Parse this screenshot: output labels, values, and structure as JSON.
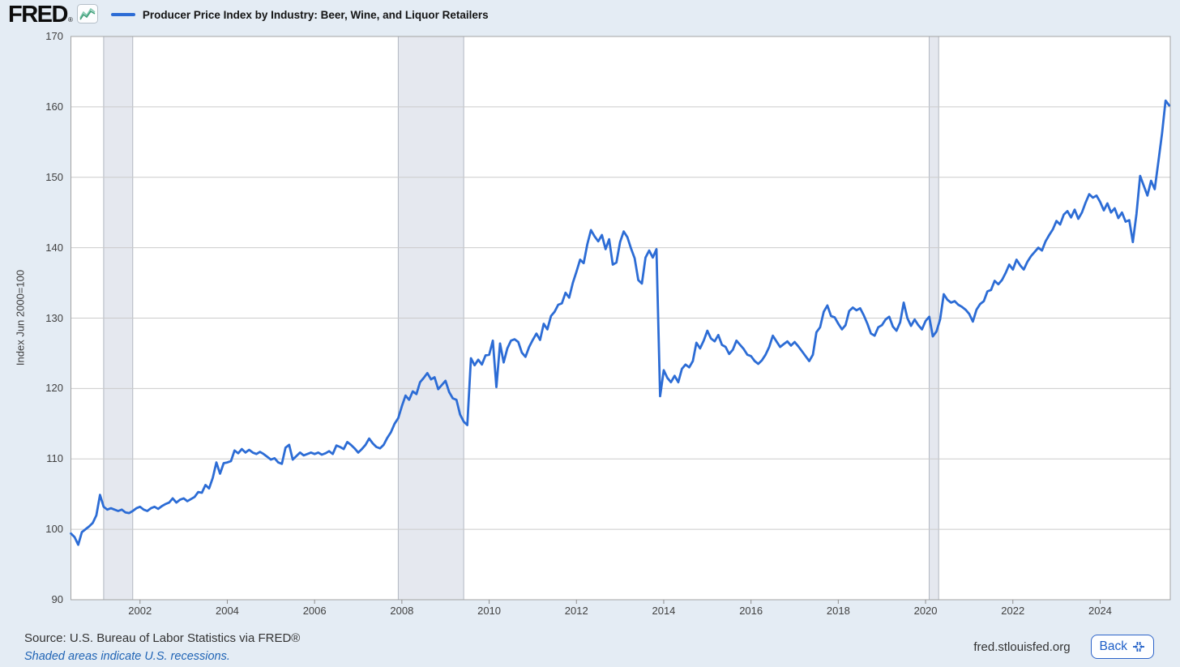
{
  "header": {
    "logo": "FRED",
    "registered": "®",
    "series_title": "Producer Price Index by Industry: Beer, Wine, and Liquor Retailers"
  },
  "y_axis": {
    "title": "Index Jun 2000=100",
    "ticks": [
      170,
      160,
      150,
      140,
      130,
      120,
      110,
      100,
      90
    ]
  },
  "x_axis": {
    "ticks": [
      2002,
      2004,
      2006,
      2008,
      2010,
      2012,
      2014,
      2016,
      2018,
      2020,
      2022,
      2024
    ]
  },
  "footer": {
    "source": "Source: U.S. Bureau of Labor Statistics via FRED®",
    "recession_note": "Shaded areas indicate U.S. recessions.",
    "site": "fred.stlouisfed.org",
    "back_label": "Back"
  },
  "colors": {
    "line": "#2c6cd5",
    "recession_fill": "#e5e8ef",
    "recession_edge": "#b2b7c1",
    "grid": "#cbcbcb",
    "plot_border": "#a3a3a3",
    "tick": "#8f8f8f",
    "page_bg": "#e4ecf4",
    "plot_bg": "#ffffff",
    "axis_text": "#404040",
    "link_blue": "#2064b5",
    "fred_icon_green": "#3e9e78",
    "fred_icon_teal": "#7fc7ae"
  },
  "chart_data": {
    "type": "line",
    "title": "Producer Price Index by Industry: Beer, Wine, and Liquor Retailers",
    "xlabel": "",
    "ylabel": "Index Jun 2000=100",
    "frequency": "monthly",
    "x_start_year": 2000,
    "x_start_month": 6,
    "x_end_label": "2025",
    "ylim": [
      90,
      170
    ],
    "grid": "horizontal",
    "legend_position": "top",
    "recessions": [
      [
        2001.167,
        2001.833
      ],
      [
        2007.917,
        2009.417
      ],
      [
        2020.083,
        2020.3
      ]
    ],
    "series": [
      {
        "name": "Producer Price Index by Industry: Beer, Wine, and Liquor Retailers",
        "color": "#2c6cd5",
        "values": [
          99.4,
          98.9,
          97.8,
          99.6,
          100.0,
          100.4,
          100.9,
          102.0,
          104.9,
          103.2,
          102.8,
          103.0,
          102.8,
          102.6,
          102.8,
          102.4,
          102.3,
          102.6,
          103.0,
          103.2,
          102.8,
          102.6,
          103.0,
          103.2,
          102.9,
          103.3,
          103.6,
          103.8,
          104.4,
          103.8,
          104.2,
          104.4,
          104.0,
          104.3,
          104.6,
          105.3,
          105.2,
          106.3,
          105.8,
          107.3,
          109.5,
          107.9,
          109.4,
          109.5,
          109.7,
          111.2,
          110.8,
          111.4,
          110.9,
          111.3,
          110.9,
          110.7,
          111.0,
          110.7,
          110.3,
          109.9,
          110.1,
          109.5,
          109.3,
          111.6,
          112.0,
          109.9,
          110.4,
          110.9,
          110.5,
          110.7,
          110.9,
          110.7,
          110.9,
          110.6,
          110.8,
          111.1,
          110.7,
          111.9,
          111.7,
          111.4,
          112.4,
          112.0,
          111.5,
          110.9,
          111.4,
          112.0,
          112.9,
          112.2,
          111.7,
          111.5,
          112.0,
          113.0,
          113.8,
          115.0,
          115.8,
          117.5,
          119.0,
          118.4,
          119.6,
          119.2,
          120.9,
          121.5,
          122.2,
          121.3,
          121.6,
          119.9,
          120.5,
          121.1,
          119.5,
          118.6,
          118.4,
          116.3,
          115.3,
          114.8,
          124.3,
          123.3,
          124.1,
          123.4,
          124.7,
          124.8,
          126.8,
          120.2,
          126.4,
          123.7,
          125.7,
          126.8,
          127.0,
          126.6,
          125.1,
          124.5,
          125.9,
          126.9,
          127.8,
          126.9,
          129.2,
          128.4,
          130.3,
          130.9,
          131.9,
          132.1,
          133.6,
          132.9,
          135.0,
          136.6,
          138.3,
          137.8,
          140.5,
          142.5,
          141.6,
          140.9,
          141.8,
          139.8,
          141.2,
          137.6,
          137.9,
          140.8,
          142.3,
          141.5,
          139.9,
          138.5,
          135.4,
          134.9,
          138.6,
          139.6,
          138.6,
          139.8,
          118.9,
          122.6,
          121.5,
          120.9,
          121.8,
          120.9,
          122.8,
          123.4,
          123.0,
          123.9,
          126.5,
          125.7,
          126.8,
          128.2,
          127.1,
          126.7,
          127.6,
          126.2,
          125.9,
          124.9,
          125.5,
          126.8,
          126.2,
          125.6,
          124.8,
          124.6,
          123.9,
          123.5,
          124.0,
          124.8,
          125.9,
          127.5,
          126.7,
          125.9,
          126.3,
          126.7,
          126.1,
          126.6,
          126.0,
          125.3,
          124.6,
          123.9,
          124.8,
          128.0,
          128.7,
          130.9,
          131.8,
          130.3,
          130.1,
          129.2,
          128.4,
          129.0,
          131.0,
          131.5,
          131.1,
          131.4,
          130.4,
          129.2,
          127.8,
          127.5,
          128.7,
          129.0,
          129.8,
          130.2,
          128.8,
          128.2,
          129.4,
          132.2,
          130.0,
          128.9,
          129.8,
          129.0,
          128.4,
          129.6,
          130.2,
          127.4,
          128.1,
          129.8,
          133.4,
          132.6,
          132.2,
          132.4,
          131.9,
          131.6,
          131.2,
          130.6,
          129.5,
          131.2,
          132.0,
          132.4,
          133.8,
          134.0,
          135.3,
          134.8,
          135.4,
          136.4,
          137.6,
          136.9,
          138.3,
          137.5,
          136.9,
          138.0,
          138.8,
          139.4,
          140.0,
          139.6,
          140.9,
          141.8,
          142.6,
          143.8,
          143.3,
          144.7,
          145.2,
          144.3,
          145.4,
          144.1,
          145.0,
          146.4,
          147.6,
          147.1,
          147.4,
          146.5,
          145.3,
          146.3,
          145.0,
          145.6,
          144.2,
          145.0,
          143.7,
          143.9,
          140.8,
          144.8,
          150.2,
          148.8,
          147.4,
          149.5,
          148.3,
          152.2,
          156.2,
          160.9,
          160.2
        ]
      }
    ]
  }
}
